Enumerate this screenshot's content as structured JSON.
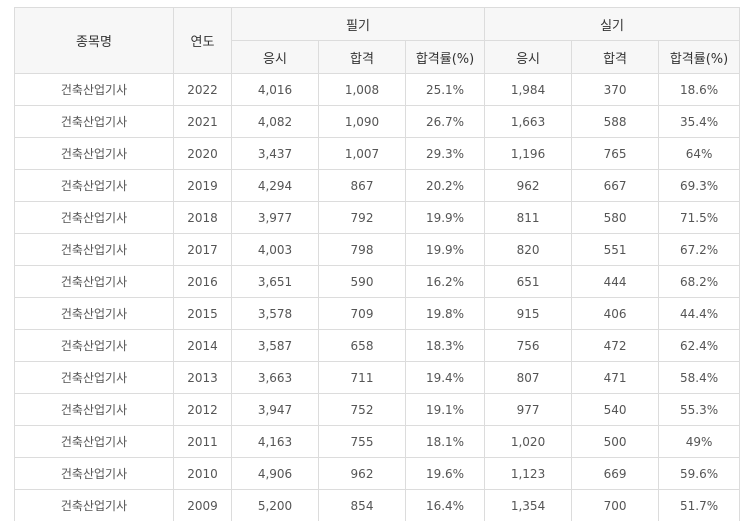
{
  "table": {
    "header": {
      "subject": "종목명",
      "year": "연도",
      "written": "필기",
      "practical": "실기",
      "written_sub": [
        "응시",
        "합격",
        "합격률(%)"
      ],
      "practical_sub": [
        "응시",
        "합격",
        "합격률(%)"
      ]
    },
    "rows": [
      [
        "건축산업기사",
        "2022",
        "4,016",
        "1,008",
        "25.1%",
        "1,984",
        "370",
        "18.6%"
      ],
      [
        "건축산업기사",
        "2021",
        "4,082",
        "1,090",
        "26.7%",
        "1,663",
        "588",
        "35.4%"
      ],
      [
        "건축산업기사",
        "2020",
        "3,437",
        "1,007",
        "29.3%",
        "1,196",
        "765",
        "64%"
      ],
      [
        "건축산업기사",
        "2019",
        "4,294",
        "867",
        "20.2%",
        "962",
        "667",
        "69.3%"
      ],
      [
        "건축산업기사",
        "2018",
        "3,977",
        "792",
        "19.9%",
        "811",
        "580",
        "71.5%"
      ],
      [
        "건축산업기사",
        "2017",
        "4,003",
        "798",
        "19.9%",
        "820",
        "551",
        "67.2%"
      ],
      [
        "건축산업기사",
        "2016",
        "3,651",
        "590",
        "16.2%",
        "651",
        "444",
        "68.2%"
      ],
      [
        "건축산업기사",
        "2015",
        "3,578",
        "709",
        "19.8%",
        "915",
        "406",
        "44.4%"
      ],
      [
        "건축산업기사",
        "2014",
        "3,587",
        "658",
        "18.3%",
        "756",
        "472",
        "62.4%"
      ],
      [
        "건축산업기사",
        "2013",
        "3,663",
        "711",
        "19.4%",
        "807",
        "471",
        "58.4%"
      ],
      [
        "건축산업기사",
        "2012",
        "3,947",
        "752",
        "19.1%",
        "977",
        "540",
        "55.3%"
      ],
      [
        "건축산업기사",
        "2011",
        "4,163",
        "755",
        "18.1%",
        "1,020",
        "500",
        "49%"
      ],
      [
        "건축산업기사",
        "2010",
        "4,906",
        "962",
        "19.6%",
        "1,123",
        "669",
        "59.6%"
      ],
      [
        "건축산업기사",
        "2009",
        "5,200",
        "854",
        "16.4%",
        "1,354",
        "700",
        "51.7%"
      ]
    ]
  }
}
